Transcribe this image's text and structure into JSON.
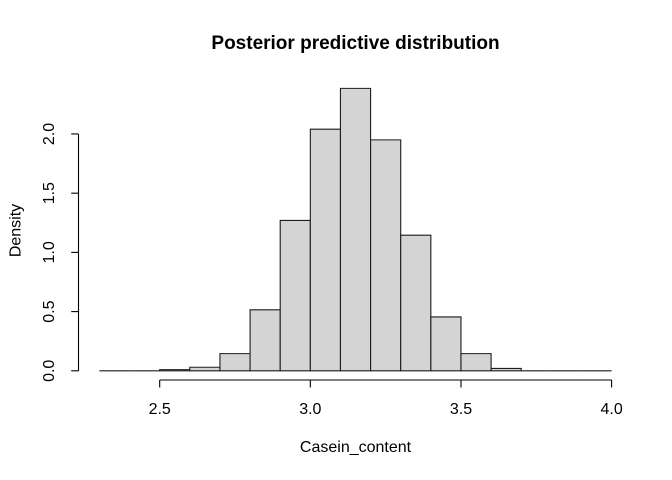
{
  "window": {
    "background": "#ffffff"
  },
  "chart_data": {
    "type": "bar",
    "subtype": "histogram",
    "title": "Posterior predictive distribution",
    "xlabel": "Casein_content",
    "ylabel": "Density",
    "bin_edges": [
      2.3,
      2.4,
      2.5,
      2.6,
      2.7,
      2.8,
      2.9,
      3.0,
      3.1,
      3.2,
      3.3,
      3.4,
      3.5,
      3.6,
      3.7,
      3.8,
      3.9,
      4.0
    ],
    "densities": [
      0,
      0,
      0.01,
      0.03,
      0.145,
      0.515,
      1.27,
      2.04,
      2.385,
      1.95,
      1.145,
      0.455,
      0.145,
      0.02,
      0,
      0,
      0
    ],
    "x_ticks": {
      "values": [
        2.5,
        3.0,
        3.5,
        4.0
      ],
      "labels": [
        "2.5",
        "3.0",
        "3.5",
        "4.0"
      ]
    },
    "y_ticks": {
      "values": [
        0.0,
        0.5,
        1.0,
        1.5,
        2.0
      ],
      "labels": [
        "0.0",
        "0.5",
        "1.0",
        "1.5",
        "2.0"
      ]
    },
    "xlim": [
      2.232,
      4.068
    ],
    "ylim": [
      -0.095,
      2.465
    ],
    "grid": false,
    "legend": null,
    "colors": {
      "bar_fill": "#d4d4d4",
      "bar_border": "#1c1c1c",
      "axis": "#000000",
      "text": "#000000",
      "background": "#ffffff"
    }
  }
}
